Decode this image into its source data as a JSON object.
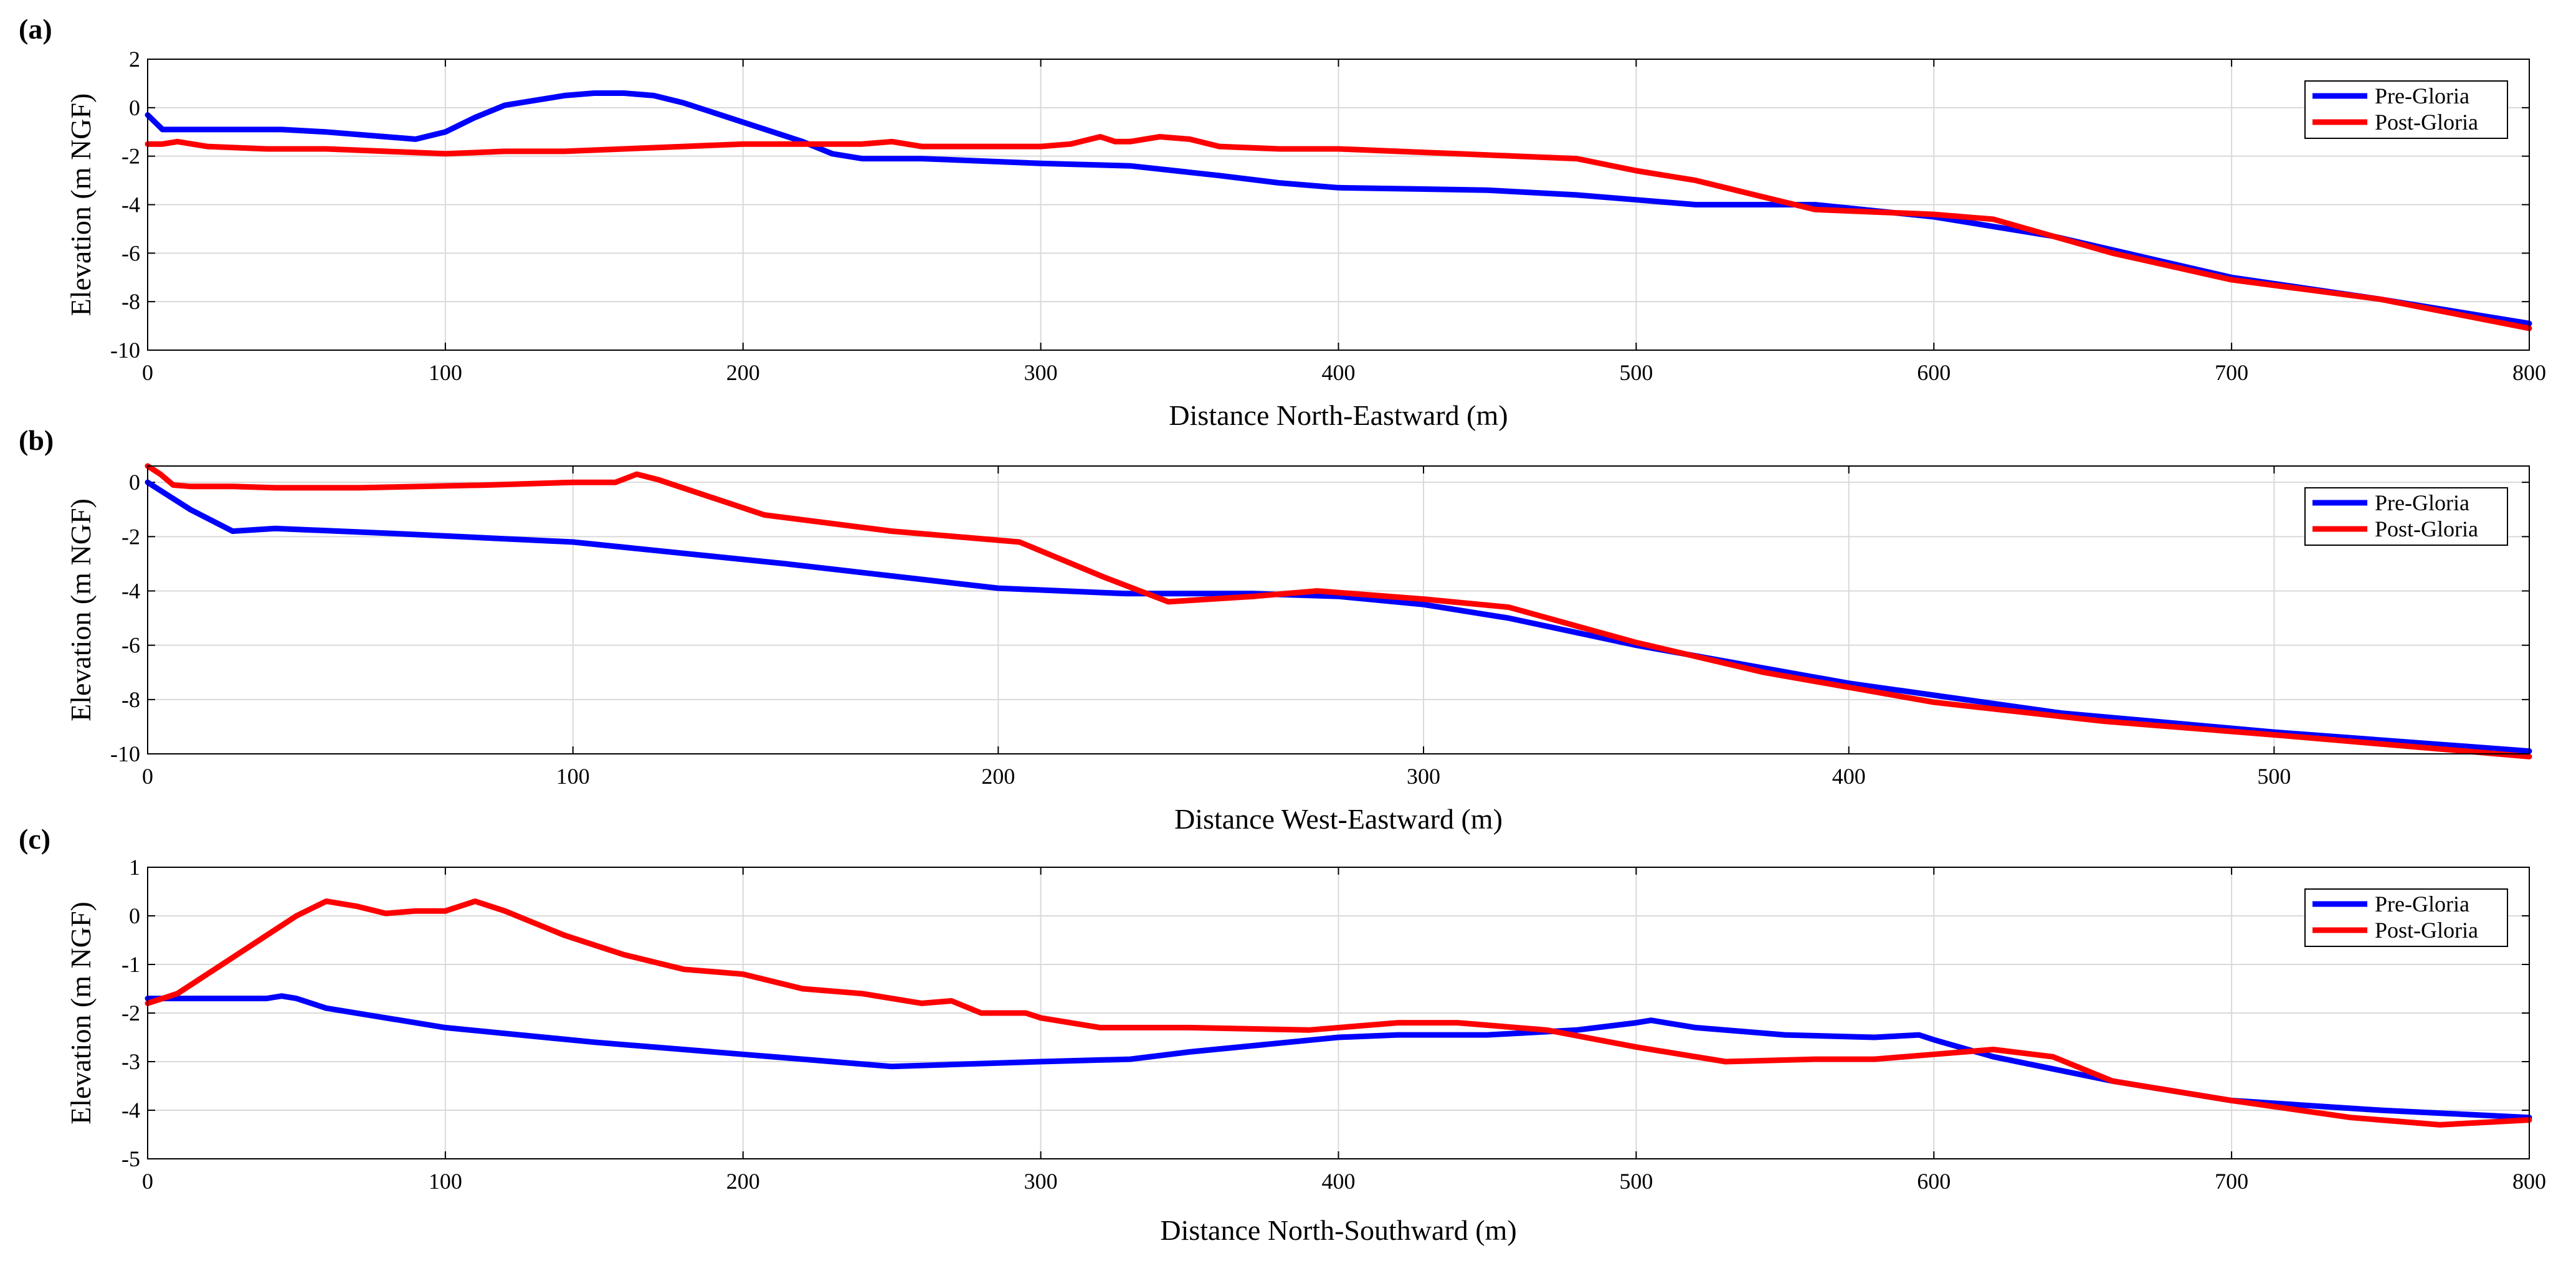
{
  "colors": {
    "pre": "#0000ff",
    "post": "#ff0000",
    "grid": "#d9d9d9",
    "axis": "#000000"
  },
  "chart_data": [
    {
      "type": "line",
      "panel_label": "(a)",
      "xlabel": "Distance North-Eastward (m)",
      "ylabel": "Elevation (m NGF)",
      "xlim": [
        0,
        800
      ],
      "ylim": [
        -10,
        2
      ],
      "xticks": [
        0,
        100,
        200,
        300,
        400,
        500,
        600,
        700,
        800
      ],
      "yticks": [
        2,
        0,
        -2,
        -4,
        -6,
        -8,
        -10
      ],
      "legend": "top-right",
      "series": [
        {
          "name": "Pre-Gloria",
          "color": "#0000ff",
          "x": [
            0,
            5,
            20,
            40,
            45,
            60,
            80,
            90,
            100,
            110,
            120,
            130,
            140,
            150,
            160,
            170,
            180,
            200,
            220,
            230,
            240,
            260,
            300,
            330,
            360,
            380,
            400,
            450,
            480,
            500,
            520,
            560,
            600,
            640,
            700,
            750,
            800
          ],
          "y": [
            -0.3,
            -0.9,
            -0.9,
            -0.9,
            -0.9,
            -1.0,
            -1.2,
            -1.3,
            -1.0,
            -0.4,
            0.1,
            0.3,
            0.5,
            0.6,
            0.6,
            0.5,
            0.2,
            -0.6,
            -1.4,
            -1.9,
            -2.1,
            -2.1,
            -2.3,
            -2.4,
            -2.8,
            -3.1,
            -3.3,
            -3.4,
            -3.6,
            -3.8,
            -4.0,
            -4.0,
            -4.5,
            -5.3,
            -7.0,
            -7.9,
            -8.9
          ]
        },
        {
          "name": "Post-Gloria",
          "color": "#ff0000",
          "x": [
            0,
            5,
            10,
            20,
            40,
            60,
            80,
            100,
            120,
            140,
            160,
            180,
            200,
            220,
            240,
            250,
            260,
            280,
            300,
            310,
            320,
            325,
            330,
            340,
            350,
            360,
            380,
            400,
            420,
            440,
            460,
            480,
            500,
            520,
            560,
            580,
            600,
            620,
            660,
            700,
            750,
            800
          ],
          "y": [
            -1.5,
            -1.5,
            -1.4,
            -1.6,
            -1.7,
            -1.7,
            -1.8,
            -1.9,
            -1.8,
            -1.8,
            -1.7,
            -1.6,
            -1.5,
            -1.5,
            -1.5,
            -1.4,
            -1.6,
            -1.6,
            -1.6,
            -1.5,
            -1.2,
            -1.4,
            -1.4,
            -1.2,
            -1.3,
            -1.6,
            -1.7,
            -1.7,
            -1.8,
            -1.9,
            -2.0,
            -2.1,
            -2.6,
            -3.0,
            -4.2,
            -4.3,
            -4.4,
            -4.6,
            -6.0,
            -7.1,
            -7.9,
            -9.1
          ]
        }
      ]
    },
    {
      "type": "line",
      "panel_label": "(b)",
      "xlabel": "Distance West-Eastward (m)",
      "ylabel": "Elevation (m NGF)",
      "xlim": [
        0,
        560
      ],
      "ylim": [
        -10,
        0.6
      ],
      "xticks": [
        0,
        100,
        200,
        300,
        400,
        500
      ],
      "yticks": [
        0,
        -2,
        -4,
        -6,
        -8,
        -10
      ],
      "legend": "top-right",
      "series": [
        {
          "name": "Pre-Gloria",
          "color": "#0000ff",
          "x": [
            0,
            10,
            20,
            30,
            60,
            100,
            150,
            200,
            230,
            260,
            280,
            300,
            320,
            350,
            400,
            450,
            500,
            560
          ],
          "y": [
            0,
            -1.0,
            -1.8,
            -1.7,
            -1.9,
            -2.2,
            -3.0,
            -3.9,
            -4.1,
            -4.1,
            -4.2,
            -4.5,
            -5.0,
            -6.0,
            -7.4,
            -8.5,
            -9.2,
            -9.9
          ]
        },
        {
          "name": "Post-Gloria",
          "color": "#ff0000",
          "x": [
            0,
            3,
            6,
            10,
            20,
            30,
            50,
            80,
            100,
            110,
            115,
            120,
            145,
            175,
            205,
            225,
            240,
            260,
            275,
            300,
            320,
            350,
            380,
            420,
            460,
            500,
            560
          ],
          "y": [
            0.6,
            0.3,
            -0.1,
            -0.15,
            -0.15,
            -0.2,
            -0.2,
            -0.1,
            0,
            0,
            0.3,
            0.1,
            -1.2,
            -1.8,
            -2.2,
            -3.5,
            -4.4,
            -4.2,
            -4.0,
            -4.3,
            -4.6,
            -5.9,
            -7.0,
            -8.1,
            -8.8,
            -9.3,
            -10.1
          ]
        }
      ]
    },
    {
      "type": "line",
      "panel_label": "(c)",
      "xlabel": "Distance North-Southward (m)",
      "ylabel": "Elevation (m NGF)",
      "xlim": [
        0,
        800
      ],
      "ylim": [
        -5,
        1
      ],
      "xticks": [
        0,
        100,
        200,
        300,
        400,
        500,
        600,
        700,
        800
      ],
      "yticks": [
        1,
        0,
        -1,
        -2,
        -3,
        -4,
        -5
      ],
      "legend": "top-right",
      "series": [
        {
          "name": "Pre-Gloria",
          "color": "#0000ff",
          "x": [
            0,
            20,
            40,
            45,
            50,
            60,
            80,
            100,
            150,
            200,
            250,
            300,
            330,
            350,
            400,
            420,
            450,
            480,
            500,
            505,
            520,
            550,
            580,
            595,
            600,
            620,
            660,
            700,
            750,
            800
          ],
          "y": [
            -1.7,
            -1.7,
            -1.7,
            -1.65,
            -1.7,
            -1.9,
            -2.1,
            -2.3,
            -2.6,
            -2.85,
            -3.1,
            -3.0,
            -2.95,
            -2.8,
            -2.5,
            -2.45,
            -2.45,
            -2.35,
            -2.2,
            -2.15,
            -2.3,
            -2.45,
            -2.5,
            -2.45,
            -2.55,
            -2.9,
            -3.4,
            -3.8,
            -4.0,
            -4.15
          ]
        },
        {
          "name": "Post-Gloria",
          "color": "#ff0000",
          "x": [
            0,
            10,
            20,
            30,
            40,
            50,
            60,
            70,
            80,
            90,
            100,
            110,
            120,
            140,
            160,
            180,
            200,
            220,
            240,
            260,
            270,
            280,
            295,
            300,
            320,
            350,
            390,
            420,
            440,
            470,
            500,
            530,
            560,
            580,
            600,
            620,
            640,
            660,
            700,
            740,
            770,
            800
          ],
          "y": [
            -1.8,
            -1.6,
            -1.2,
            -0.8,
            -0.4,
            0.0,
            0.3,
            0.2,
            0.05,
            0.1,
            0.1,
            0.3,
            0.1,
            -0.4,
            -0.8,
            -1.1,
            -1.2,
            -1.5,
            -1.6,
            -1.8,
            -1.75,
            -2.0,
            -2.0,
            -2.1,
            -2.3,
            -2.3,
            -2.35,
            -2.2,
            -2.2,
            -2.35,
            -2.7,
            -3.0,
            -2.95,
            -2.95,
            -2.85,
            -2.75,
            -2.9,
            -3.4,
            -3.8,
            -4.15,
            -4.3,
            -4.2
          ]
        }
      ]
    }
  ]
}
